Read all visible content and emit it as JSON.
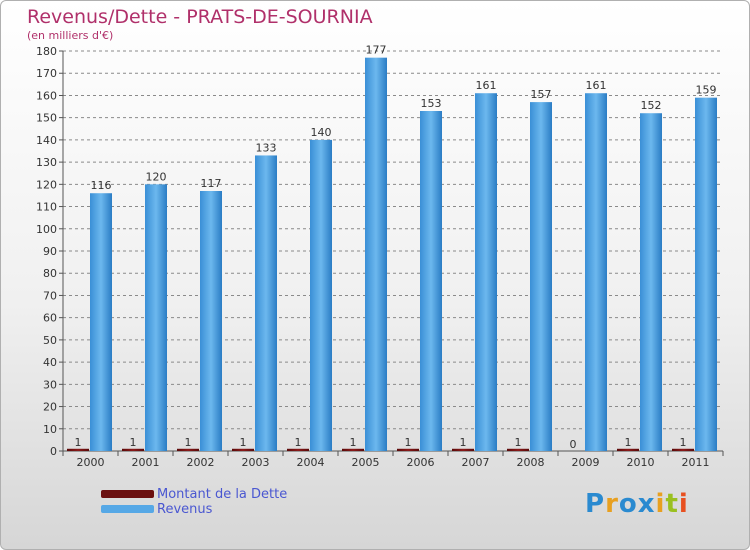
{
  "header": {
    "title": "Revenus/Dette - PRATS-DE-SOURNIA",
    "subtitle": "(en milliers d'€)"
  },
  "chart_data": {
    "type": "bar",
    "title": "Revenus/Dette - PRATS-DE-SOURNIA",
    "ylabel": "(en milliers d'€)",
    "xlabel": "",
    "categories": [
      "2000",
      "2001",
      "2002",
      "2003",
      "2004",
      "2005",
      "2006",
      "2007",
      "2008",
      "2009",
      "2010",
      "2011"
    ],
    "series": [
      {
        "name": "Montant de la Dette",
        "color": "#6b0f0f",
        "values": [
          1,
          1,
          1,
          1,
          1,
          1,
          1,
          1,
          1,
          0,
          1,
          1
        ]
      },
      {
        "name": "Revenus",
        "color": "#56a8e6",
        "values": [
          116,
          120,
          117,
          133,
          140,
          177,
          153,
          161,
          157,
          161,
          152,
          159
        ]
      }
    ],
    "ylim": [
      0,
      180
    ],
    "ytick_step": 10,
    "grid": true,
    "legend": "bottom-left"
  },
  "legend": {
    "items": [
      {
        "label": "Montant de la Dette",
        "color": "#6b0f0f"
      },
      {
        "label": "Revenus",
        "color": "#56a8e6"
      }
    ]
  },
  "logo": {
    "letters": [
      "P",
      "r",
      "o",
      "x",
      "i",
      "t",
      "i"
    ],
    "colors": [
      "#2a8ad0",
      "#e8a020",
      "#2a8ad0",
      "#2a8ad0",
      "#e8a020",
      "#9ac020",
      "#e85020"
    ]
  }
}
